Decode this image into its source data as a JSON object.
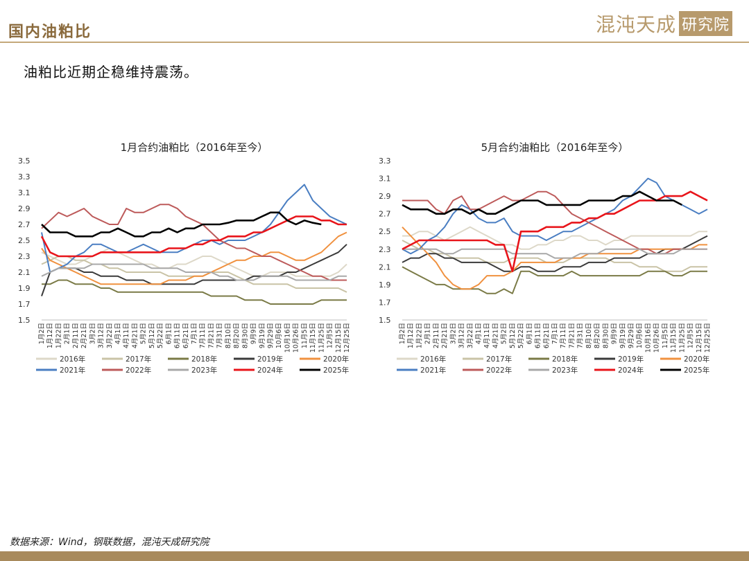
{
  "header": {
    "title": "国内油粕比",
    "brand_main": "混沌天成",
    "brand_sub": "研究院"
  },
  "subtitle": "油粕比近期企稳维持震荡。",
  "footer": {
    "source": "数据来源：Wind，钢联数据，混沌天成研究院"
  },
  "colors": {
    "accent": "#8a6a3c",
    "brand": "#b79a6c",
    "s2016": "#ddd8c8",
    "s2017": "#c9c3a6",
    "s2018": "#7a7a46",
    "s2019": "#3a3a3a",
    "s2020": "#f0913f",
    "s2021": "#4a7ec2",
    "s2022": "#bd5a5a",
    "s2023": "#a8a8a8",
    "s2024": "#e8141a",
    "s2025": "#000000"
  },
  "chart_data": [
    {
      "type": "line",
      "title": "1月合约油粕比（2016年至今）",
      "ylim": [
        1.5,
        3.5
      ],
      "yticks": [
        "1.5",
        "1.7",
        "1.9",
        "2.1",
        "2.3",
        "2.5",
        "2.7",
        "2.9",
        "3.1",
        "3.3",
        "3.5"
      ],
      "categories": [
        "1月2日",
        "1月12日",
        "1月22日",
        "2月1日",
        "2月11日",
        "2月21日",
        "3月2日",
        "3月12日",
        "3月22日",
        "4月1日",
        "4月11日",
        "4月21日",
        "5月2日",
        "5月12日",
        "5月22日",
        "6月1日",
        "6月11日",
        "6月21日",
        "7月1日",
        "7月11日",
        "7月21日",
        "7月31日",
        "8月10日",
        "8月20日",
        "8月30日",
        "9月9日",
        "9月19日",
        "9月29日",
        "10月6日",
        "10月16日",
        "10月26日",
        "11月5日",
        "11月15日",
        "11月25日",
        "12月5日",
        "12月15日",
        "12月25日"
      ],
      "series": [
        {
          "name": "2016年",
          "values": [
            2.35,
            2.3,
            2.25,
            2.2,
            2.2,
            2.25,
            2.3,
            2.35,
            2.4,
            2.35,
            2.3,
            2.25,
            2.2,
            2.2,
            2.15,
            2.15,
            2.2,
            2.2,
            2.25,
            2.3,
            2.3,
            2.25,
            2.2,
            2.15,
            2.1,
            2.05,
            2.05,
            2.1,
            2.1,
            2.1,
            2.05,
            2.05,
            2.05,
            2.05,
            2.05,
            2.1,
            2.2
          ]
        },
        {
          "name": "2017年",
          "values": [
            2.2,
            2.25,
            2.3,
            2.3,
            2.25,
            2.25,
            2.2,
            2.2,
            2.15,
            2.15,
            2.1,
            2.1,
            2.1,
            2.1,
            2.1,
            2.05,
            2.05,
            2.05,
            2.05,
            2.05,
            2.1,
            2.1,
            2.1,
            2.05,
            2.0,
            1.95,
            1.95,
            1.95,
            1.95,
            1.95,
            1.9,
            1.9,
            1.9,
            1.9,
            1.9,
            1.9,
            1.85
          ]
        },
        {
          "name": "2018年",
          "values": [
            1.95,
            1.95,
            2.0,
            2.0,
            1.95,
            1.95,
            1.95,
            1.9,
            1.9,
            1.85,
            1.85,
            1.85,
            1.85,
            1.85,
            1.85,
            1.85,
            1.85,
            1.85,
            1.85,
            1.85,
            1.8,
            1.8,
            1.8,
            1.8,
            1.75,
            1.75,
            1.75,
            1.7,
            1.7,
            1.7,
            1.7,
            1.7,
            1.7,
            1.75,
            1.75,
            1.75,
            1.75
          ]
        },
        {
          "name": "2019年",
          "values": [
            1.8,
            2.1,
            2.15,
            2.15,
            2.15,
            2.1,
            2.1,
            2.05,
            2.05,
            2.05,
            2.0,
            2.0,
            2.0,
            1.95,
            1.95,
            1.95,
            1.95,
            1.95,
            1.95,
            2.0,
            2.0,
            2.0,
            2.0,
            2.0,
            2.0,
            2.05,
            2.05,
            2.05,
            2.05,
            2.1,
            2.1,
            2.15,
            2.2,
            2.25,
            2.3,
            2.35,
            2.45
          ]
        },
        {
          "name": "2020年",
          "values": [
            2.4,
            2.25,
            2.2,
            2.15,
            2.1,
            2.05,
            2.0,
            1.95,
            1.95,
            1.95,
            1.95,
            1.95,
            1.95,
            1.95,
            1.95,
            2.0,
            2.0,
            2.0,
            2.05,
            2.05,
            2.1,
            2.15,
            2.2,
            2.25,
            2.25,
            2.3,
            2.3,
            2.35,
            2.35,
            2.3,
            2.25,
            2.25,
            2.3,
            2.35,
            2.45,
            2.55,
            2.6
          ]
        },
        {
          "name": "2021年",
          "values": [
            2.6,
            2.1,
            2.15,
            2.2,
            2.3,
            2.35,
            2.45,
            2.45,
            2.4,
            2.35,
            2.35,
            2.4,
            2.45,
            2.4,
            2.35,
            2.35,
            2.35,
            2.4,
            2.45,
            2.5,
            2.5,
            2.45,
            2.5,
            2.5,
            2.5,
            2.55,
            2.6,
            2.7,
            2.85,
            3.0,
            3.1,
            3.2,
            3.0,
            2.9,
            2.8,
            2.75,
            2.7
          ]
        },
        {
          "name": "2022年",
          "values": [
            2.65,
            2.75,
            2.85,
            2.8,
            2.85,
            2.9,
            2.8,
            2.75,
            2.7,
            2.7,
            2.9,
            2.85,
            2.85,
            2.9,
            2.95,
            2.95,
            2.9,
            2.8,
            2.75,
            2.7,
            2.6,
            2.5,
            2.45,
            2.4,
            2.4,
            2.35,
            2.3,
            2.3,
            2.25,
            2.2,
            2.15,
            2.1,
            2.05,
            2.05,
            2.0,
            2.0,
            2.0
          ]
        },
        {
          "name": "2023年",
          "values": [
            2.05,
            2.1,
            2.15,
            2.15,
            2.15,
            2.15,
            2.2,
            2.2,
            2.2,
            2.2,
            2.2,
            2.2,
            2.2,
            2.15,
            2.15,
            2.15,
            2.15,
            2.1,
            2.1,
            2.1,
            2.1,
            2.05,
            2.05,
            2.0,
            2.0,
            2.0,
            2.05,
            2.05,
            2.05,
            2.05,
            2.0,
            2.0,
            2.0,
            2.0,
            2.0,
            2.05,
            2.05
          ]
        },
        {
          "name": "2024年",
          "values": [
            2.55,
            2.35,
            2.3,
            2.3,
            2.3,
            2.3,
            2.3,
            2.35,
            2.35,
            2.35,
            2.35,
            2.35,
            2.35,
            2.35,
            2.35,
            2.4,
            2.4,
            2.4,
            2.45,
            2.45,
            2.5,
            2.5,
            2.55,
            2.55,
            2.55,
            2.6,
            2.6,
            2.65,
            2.7,
            2.75,
            2.8,
            2.8,
            2.8,
            2.75,
            2.75,
            2.7,
            2.7
          ]
        },
        {
          "name": "2025年",
          "values": [
            2.7,
            2.6,
            2.6,
            2.6,
            2.55,
            2.55,
            2.55,
            2.6,
            2.6,
            2.65,
            2.6,
            2.55,
            2.55,
            2.6,
            2.6,
            2.65,
            2.6,
            2.65,
            2.65,
            2.7,
            2.7,
            2.7,
            2.72,
            2.75,
            2.75,
            2.75,
            2.8,
            2.85,
            2.85,
            2.75,
            2.7,
            2.75,
            2.72,
            2.7,
            null,
            null,
            null
          ]
        }
      ]
    },
    {
      "type": "line",
      "title": "5月合约油粕比（2016年至今）",
      "ylim": [
        1.5,
        3.3
      ],
      "yticks": [
        "1.5",
        "1.7",
        "1.9",
        "2.1",
        "2.3",
        "2.5",
        "2.7",
        "2.9",
        "3.1",
        "3.3"
      ],
      "categories": [
        "1月2日",
        "1月12日",
        "1月22日",
        "2月1日",
        "2月11日",
        "2月21日",
        "3月2日",
        "3月12日",
        "3月22日",
        "4月1日",
        "4月11日",
        "4月21日",
        "5月2日",
        "5月12日",
        "5月22日",
        "6月1日",
        "6月11日",
        "6月21日",
        "7月1日",
        "7月11日",
        "7月21日",
        "7月31日",
        "8月10日",
        "8月20日",
        "8月30日",
        "9月9日",
        "9月19日",
        "9月29日",
        "10月6日",
        "10月16日",
        "10月26日",
        "11月5日",
        "11月15日",
        "11月25日",
        "12月5日",
        "12月15日",
        "12月25日"
      ],
      "series": [
        {
          "name": "2016年",
          "values": [
            2.45,
            2.45,
            2.5,
            2.5,
            2.45,
            2.4,
            2.45,
            2.5,
            2.55,
            2.5,
            2.45,
            2.4,
            2.35,
            2.35,
            2.3,
            2.3,
            2.35,
            2.35,
            2.4,
            2.4,
            2.45,
            2.45,
            2.4,
            2.4,
            2.35,
            2.4,
            2.4,
            2.45,
            2.45,
            2.45,
            2.45,
            2.45,
            2.45,
            2.45,
            2.45,
            2.5,
            2.5
          ]
        },
        {
          "name": "2017年",
          "values": [
            2.4,
            2.35,
            2.3,
            2.3,
            2.25,
            2.25,
            2.2,
            2.2,
            2.2,
            2.2,
            2.15,
            2.15,
            2.15,
            2.2,
            2.2,
            2.2,
            2.2,
            2.15,
            2.15,
            2.15,
            2.2,
            2.2,
            2.2,
            2.2,
            2.2,
            2.15,
            2.15,
            2.15,
            2.1,
            2.1,
            2.1,
            2.05,
            2.05,
            2.05,
            2.1,
            2.1,
            2.1
          ]
        },
        {
          "name": "2018年",
          "values": [
            2.1,
            2.05,
            2.0,
            1.95,
            1.9,
            1.9,
            1.85,
            1.85,
            1.85,
            1.85,
            1.8,
            1.8,
            1.85,
            1.8,
            2.05,
            2.05,
            2.0,
            2.0,
            2.0,
            2.0,
            2.05,
            2.0,
            2.0,
            2.0,
            2.0,
            2.0,
            2.0,
            2.0,
            2.0,
            2.05,
            2.05,
            2.05,
            2.0,
            2.0,
            2.05,
            2.05,
            2.05
          ]
        },
        {
          "name": "2019年",
          "values": [
            2.15,
            2.2,
            2.2,
            2.25,
            2.25,
            2.2,
            2.2,
            2.15,
            2.15,
            2.15,
            2.15,
            2.1,
            2.05,
            2.05,
            2.1,
            2.1,
            2.05,
            2.05,
            2.05,
            2.1,
            2.1,
            2.1,
            2.15,
            2.15,
            2.15,
            2.2,
            2.2,
            2.2,
            2.2,
            2.25,
            2.25,
            2.3,
            2.3,
            2.3,
            2.35,
            2.4,
            2.45
          ]
        },
        {
          "name": "2020年",
          "values": [
            2.55,
            2.45,
            2.35,
            2.25,
            2.15,
            2.0,
            1.9,
            1.85,
            1.85,
            1.9,
            2.0,
            2.0,
            2.0,
            2.05,
            2.15,
            2.15,
            2.15,
            2.15,
            2.15,
            2.2,
            2.2,
            2.2,
            2.25,
            2.25,
            2.25,
            2.25,
            2.25,
            2.25,
            2.3,
            2.3,
            2.3,
            2.3,
            2.3,
            2.3,
            2.3,
            2.35,
            2.35
          ]
        },
        {
          "name": "2021年",
          "values": [
            2.3,
            2.25,
            2.3,
            2.4,
            2.45,
            2.55,
            2.7,
            2.8,
            2.75,
            2.65,
            2.6,
            2.6,
            2.65,
            2.5,
            2.45,
            2.45,
            2.45,
            2.4,
            2.45,
            2.5,
            2.5,
            2.55,
            2.6,
            2.65,
            2.7,
            2.75,
            2.85,
            2.9,
            3.0,
            3.1,
            3.05,
            2.9,
            2.85,
            2.8,
            2.75,
            2.7,
            2.75
          ]
        },
        {
          "name": "2022年",
          "values": [
            2.85,
            2.85,
            2.85,
            2.85,
            2.75,
            2.7,
            2.85,
            2.9,
            2.75,
            2.75,
            2.8,
            2.85,
            2.9,
            2.85,
            2.85,
            2.9,
            2.95,
            2.95,
            2.9,
            2.8,
            2.7,
            2.65,
            2.6,
            2.55,
            2.5,
            2.45,
            2.4,
            2.35,
            2.3,
            2.3,
            2.25,
            2.25,
            2.3,
            2.3,
            2.3,
            2.3,
            2.3
          ]
        },
        {
          "name": "2023年",
          "values": [
            2.3,
            2.3,
            2.3,
            2.3,
            2.3,
            2.25,
            2.25,
            2.3,
            2.3,
            2.3,
            2.3,
            2.3,
            2.3,
            2.25,
            2.25,
            2.25,
            2.25,
            2.25,
            2.2,
            2.2,
            2.2,
            2.25,
            2.25,
            2.25,
            2.3,
            2.3,
            2.3,
            2.3,
            2.3,
            2.25,
            2.25,
            2.25,
            2.25,
            2.3,
            2.3,
            2.3,
            2.3
          ]
        },
        {
          "name": "2024年",
          "values": [
            2.3,
            2.35,
            2.4,
            2.4,
            2.4,
            2.4,
            2.4,
            2.4,
            2.4,
            2.4,
            2.4,
            2.35,
            2.35,
            2.05,
            2.5,
            2.5,
            2.5,
            2.55,
            2.55,
            2.55,
            2.6,
            2.6,
            2.65,
            2.65,
            2.7,
            2.7,
            2.75,
            2.8,
            2.85,
            2.85,
            2.85,
            2.9,
            2.9,
            2.9,
            2.95,
            2.9,
            2.85
          ]
        },
        {
          "name": "2025年",
          "values": [
            2.8,
            2.75,
            2.75,
            2.75,
            2.7,
            2.7,
            2.75,
            2.75,
            2.7,
            2.75,
            2.7,
            2.7,
            2.75,
            2.8,
            2.85,
            2.85,
            2.85,
            2.8,
            2.8,
            2.8,
            2.8,
            2.8,
            2.85,
            2.85,
            2.85,
            2.85,
            2.9,
            2.9,
            2.95,
            2.9,
            2.85,
            2.85,
            2.85,
            2.8,
            null,
            null,
            null
          ]
        }
      ]
    }
  ]
}
